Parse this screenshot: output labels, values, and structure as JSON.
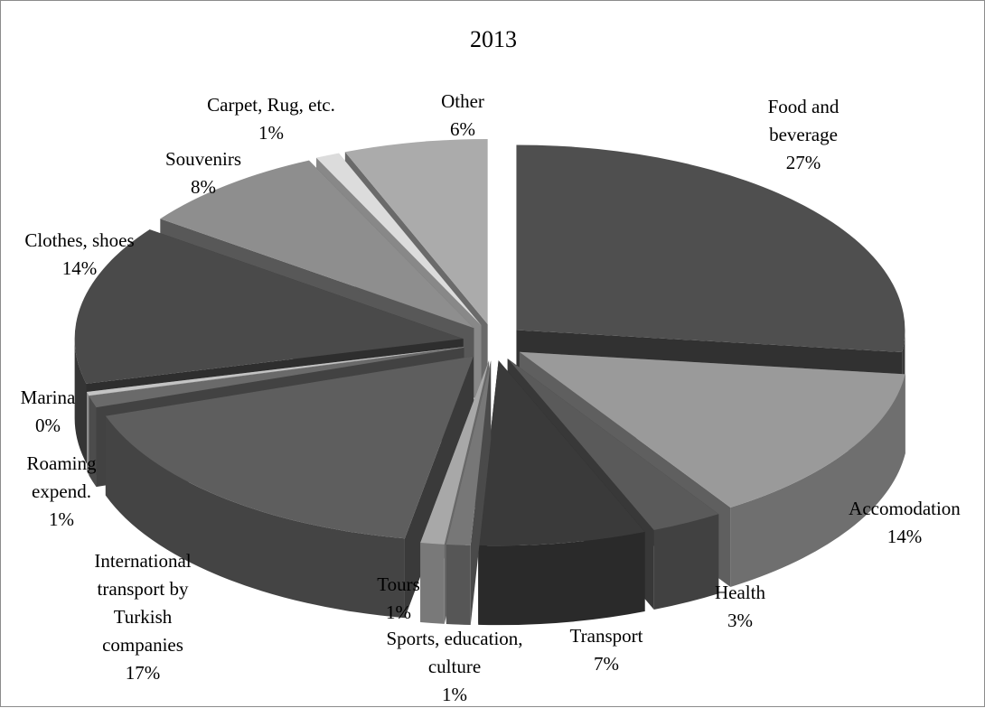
{
  "chart_data": {
    "type": "pie",
    "title": "2013",
    "slices": [
      {
        "name": "Food and beverage",
        "value": 27,
        "label": "27%",
        "color": "#4f4f4f"
      },
      {
        "name": "Accomodation",
        "value": 14,
        "label": "14%",
        "color": "#9a9a9a"
      },
      {
        "name": "Health",
        "value": 3,
        "label": "3%",
        "color": "#5a5a5a"
      },
      {
        "name": "Transport",
        "value": 7,
        "label": "7%",
        "color": "#3a3a3a"
      },
      {
        "name": "Sports, education, culture",
        "value": 1,
        "label": "1%",
        "color": "#777777"
      },
      {
        "name": "Tours",
        "value": 1,
        "label": "1%",
        "color": "#a8a8a8"
      },
      {
        "name": "International transport by Turkish companies",
        "value": 17,
        "label": "17%",
        "color": "#5e5e5e"
      },
      {
        "name": "Roaming expend.",
        "value": 1,
        "label": "1%",
        "color": "#6a6a6a"
      },
      {
        "name": "Marina",
        "value": 0,
        "label": "0%",
        "color": "#c4c4c4"
      },
      {
        "name": "Clothes, shoes",
        "value": 14,
        "label": "14%",
        "color": "#4a4a4a"
      },
      {
        "name": "Souvenirs",
        "value": 8,
        "label": "8%",
        "color": "#8e8e8e"
      },
      {
        "name": "Carpet, Rug, etc.",
        "value": 1,
        "label": "1%",
        "color": "#dcdcdc"
      },
      {
        "name": "Other",
        "value": 6,
        "label": "6%",
        "color": "#ababab"
      }
    ]
  }
}
